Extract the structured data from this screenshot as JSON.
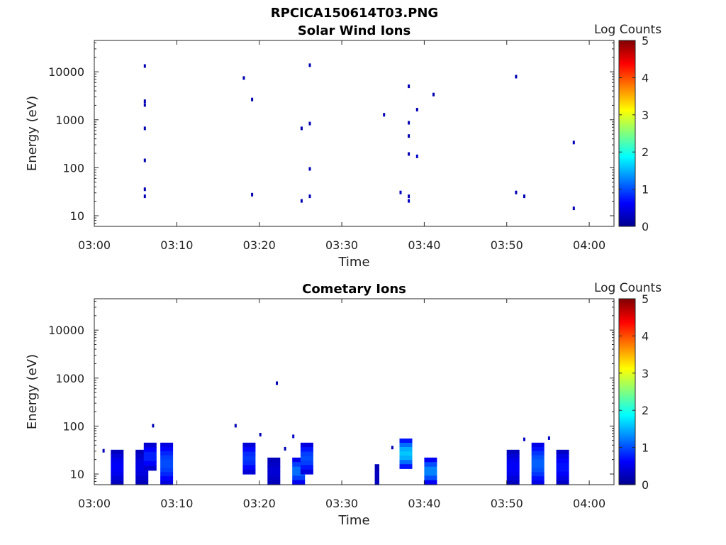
{
  "figure": {
    "suptitle": "RPCICA150614T03.PNG"
  },
  "colors": {
    "colormap": "jet",
    "axis": "#262626",
    "background": "#ffffff"
  },
  "chart_data": [
    {
      "type": "heatmap",
      "title": "Solar Wind Ions",
      "xlabel": "Time",
      "ylabel": "Energy (eV)",
      "xlim": [
        "03:00",
        "04:03"
      ],
      "xticks": [
        "03:00",
        "03:10",
        "03:20",
        "03:30",
        "03:40",
        "03:50",
        "04:00"
      ],
      "ylim": [
        6,
        45000
      ],
      "yscale": "log",
      "yticks": [
        "10",
        "100",
        "1000",
        "10000"
      ],
      "colorbar": {
        "label": "Log Counts",
        "range": [
          0,
          5
        ],
        "ticks": [
          "0",
          "1",
          "2",
          "3",
          "4",
          "5"
        ]
      },
      "points": [
        {
          "t": "03:06",
          "e": 25,
          "v": 0.2
        },
        {
          "t": "03:06",
          "e": 35,
          "v": 0.2
        },
        {
          "t": "03:06",
          "e": 650,
          "v": 0.2
        },
        {
          "t": "03:06",
          "e": 2400,
          "v": 0.2
        },
        {
          "t": "03:06",
          "e": 13000,
          "v": 0.2
        },
        {
          "t": "03:06",
          "e": 140,
          "v": 0.2
        },
        {
          "t": "03:06",
          "e": 2000,
          "v": 0.2
        },
        {
          "t": "03:18",
          "e": 7300,
          "v": 0.2
        },
        {
          "t": "03:19",
          "e": 2600,
          "v": 0.2
        },
        {
          "t": "03:19",
          "e": 27,
          "v": 0.2
        },
        {
          "t": "03:25",
          "e": 20,
          "v": 0.2
        },
        {
          "t": "03:25",
          "e": 650,
          "v": 0.2
        },
        {
          "t": "03:26",
          "e": 25,
          "v": 0.2
        },
        {
          "t": "03:26",
          "e": 93,
          "v": 0.2
        },
        {
          "t": "03:26",
          "e": 820,
          "v": 0.2
        },
        {
          "t": "03:26",
          "e": 13500,
          "v": 0.2
        },
        {
          "t": "03:35",
          "e": 1250,
          "v": 0.2
        },
        {
          "t": "03:37",
          "e": 30,
          "v": 0.3
        },
        {
          "t": "03:38",
          "e": 20,
          "v": 0.3
        },
        {
          "t": "03:38",
          "e": 190,
          "v": 0.2
        },
        {
          "t": "03:38",
          "e": 25,
          "v": 0.2
        },
        {
          "t": "03:38",
          "e": 450,
          "v": 0.2
        },
        {
          "t": "03:38",
          "e": 850,
          "v": 0.2
        },
        {
          "t": "03:38",
          "e": 4900,
          "v": 0.2
        },
        {
          "t": "03:39",
          "e": 170,
          "v": 0.3
        },
        {
          "t": "03:39",
          "e": 1600,
          "v": 0.2
        },
        {
          "t": "03:41",
          "e": 3300,
          "v": 0.2
        },
        {
          "t": "03:51",
          "e": 30,
          "v": 0.2
        },
        {
          "t": "03:51",
          "e": 7800,
          "v": 0.2
        },
        {
          "t": "03:52",
          "e": 25,
          "v": 0.2
        },
        {
          "t": "03:58",
          "e": 330,
          "v": 0.2
        },
        {
          "t": "03:58",
          "e": 14,
          "v": 0.2
        }
      ]
    },
    {
      "type": "heatmap",
      "title": "Cometary Ions",
      "xlabel": "Time",
      "ylabel": "Energy (eV)",
      "xlim": [
        "03:00",
        "04:03"
      ],
      "xticks": [
        "03:00",
        "03:10",
        "03:20",
        "03:30",
        "03:40",
        "03:50",
        "04:00"
      ],
      "ylim": [
        6,
        45000
      ],
      "yscale": "log",
      "yticks": [
        "10",
        "100",
        "1000",
        "10000"
      ],
      "colorbar": {
        "label": "Log Counts",
        "range": [
          0,
          5
        ],
        "ticks": [
          "0",
          "1",
          "2",
          "3",
          "4",
          "5"
        ]
      },
      "bursts": [
        {
          "t0": "03:02",
          "t1": "03:03",
          "elo": 6,
          "ehi": 32,
          "v": 0.6
        },
        {
          "t0": "03:05",
          "t1": "03:06",
          "elo": 6,
          "ehi": 32,
          "v": 0.5
        },
        {
          "t0": "03:06",
          "t1": "03:07",
          "elo": 12,
          "ehi": 45,
          "v": 0.8
        },
        {
          "t0": "03:08",
          "t1": "03:09",
          "elo": 6,
          "ehi": 45,
          "v": 1.0
        },
        {
          "t0": "03:18",
          "t1": "03:19",
          "elo": 10,
          "ehi": 45,
          "v": 0.9
        },
        {
          "t0": "03:21",
          "t1": "03:22",
          "elo": 6,
          "ehi": 22,
          "v": 0.4
        },
        {
          "t0": "03:24",
          "t1": "03:25",
          "elo": 6,
          "ehi": 22,
          "v": 1.2
        },
        {
          "t0": "03:25",
          "t1": "03:26",
          "elo": 10,
          "ehi": 45,
          "v": 1.0
        },
        {
          "t0": "03:34",
          "t1": "03:34",
          "elo": 6,
          "ehi": 16,
          "v": 0.3
        },
        {
          "t0": "03:37",
          "t1": "03:38",
          "elo": 13,
          "ehi": 55,
          "v": 1.6
        },
        {
          "t0": "03:40",
          "t1": "03:41",
          "elo": 6,
          "ehi": 22,
          "v": 1.3
        },
        {
          "t0": "03:50",
          "t1": "03:51",
          "elo": 6,
          "ehi": 32,
          "v": 0.6
        },
        {
          "t0": "03:53",
          "t1": "03:54",
          "elo": 6,
          "ehi": 45,
          "v": 1.1
        },
        {
          "t0": "03:56",
          "t1": "03:57",
          "elo": 6,
          "ehi": 32,
          "v": 0.7
        }
      ],
      "points": [
        {
          "t": "03:01",
          "e": 30,
          "v": 0.2
        },
        {
          "t": "03:07",
          "e": 100,
          "v": 0.2
        },
        {
          "t": "03:17",
          "e": 100,
          "v": 0.2
        },
        {
          "t": "03:20",
          "e": 65,
          "v": 0.2
        },
        {
          "t": "03:22",
          "e": 770,
          "v": 0.2
        },
        {
          "t": "03:23",
          "e": 33,
          "v": 0.2
        },
        {
          "t": "03:24",
          "e": 60,
          "v": 0.3
        },
        {
          "t": "03:36",
          "e": 35,
          "v": 0.2
        },
        {
          "t": "03:52",
          "e": 52,
          "v": 0.3
        },
        {
          "t": "03:55",
          "e": 55,
          "v": 0.3
        }
      ]
    }
  ]
}
